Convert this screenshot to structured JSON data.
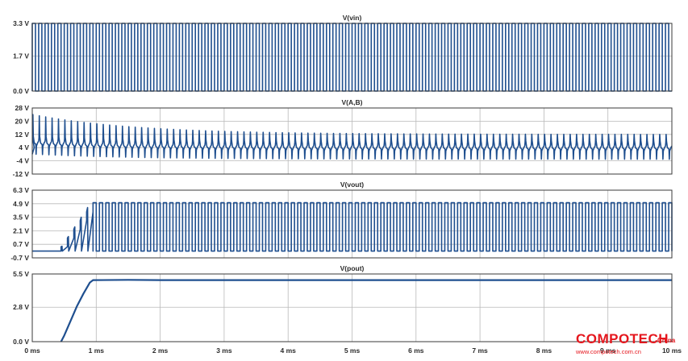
{
  "chart_data": [
    {
      "type": "line",
      "title": "V(vin)",
      "ytick_labels": [
        "3.3 V",
        "1.7 V",
        "0.0 V"
      ],
      "ylim": [
        0,
        3.3
      ],
      "xlim": [
        0,
        10
      ],
      "x_unit": "ms",
      "grid": true,
      "series": [
        {
          "waveform": "square",
          "low": 0,
          "high": 3.3,
          "period_ms": 0.1,
          "start_ms": 0,
          "end_ms": 10
        }
      ]
    },
    {
      "type": "line",
      "title": "V(A,B)",
      "ytick_labels": [
        "28 V",
        "20 V",
        "12 V",
        "4 V",
        "-4 V",
        "-12 V"
      ],
      "ylim": [
        -12,
        28
      ],
      "xlim": [
        0,
        10
      ],
      "x_unit": "ms",
      "grid": true,
      "series": [
        {
          "waveform": "switching with ringing",
          "period_ms": 0.1,
          "spike_peak_start": 24,
          "spike_peak_steady": 12,
          "spike_trough_start": 0,
          "spike_trough_steady": -3,
          "settle_level": 4
        }
      ]
    },
    {
      "type": "line",
      "title": "V(vout)",
      "ytick_labels": [
        "6.3 V",
        "4.9 V",
        "3.5 V",
        "2.1 V",
        "0.7 V",
        "-0.7 V"
      ],
      "ylim": [
        -0.7,
        6.3
      ],
      "xlim": [
        0,
        10
      ],
      "x_unit": "ms",
      "grid": true,
      "series": [
        {
          "waveform": "square with ramp-up",
          "initial": 0,
          "ramp_start_ms": 0.45,
          "ramp_end_ms": 0.95,
          "high": 5,
          "low": 0,
          "period_ms": 0.1
        }
      ]
    },
    {
      "type": "line",
      "title": "V(pout)",
      "ytick_labels": [
        "5.5 V",
        "2.8 V",
        "0.0 V"
      ],
      "ylim": [
        0,
        5.5
      ],
      "xlim": [
        0,
        10
      ],
      "x_unit": "ms",
      "xtick_labels": [
        "0 ms",
        "1 ms",
        "2 ms",
        "3 ms",
        "4 ms",
        "5 ms",
        "6 ms",
        "7 ms",
        "8 ms",
        "9 ms",
        "10 ms"
      ],
      "grid": true,
      "series": [
        {
          "x": [
            0.45,
            0.5,
            0.6,
            0.7,
            0.8,
            0.9,
            0.95,
            1.5,
            2,
            4,
            6,
            8,
            10
          ],
          "y": [
            0,
            0.5,
            1.7,
            2.9,
            3.9,
            4.8,
            5.0,
            5.02,
            5.0,
            5.0,
            5.0,
            5.0,
            5.0
          ]
        }
      ]
    }
  ],
  "watermark": {
    "brand": "COMPOTECH",
    "region": "China",
    "url": "www.compotech.com.cn"
  },
  "colors": {
    "trace": "#1f4f8f",
    "grid": "#b9b9b9",
    "watermark": "#e5161d"
  }
}
